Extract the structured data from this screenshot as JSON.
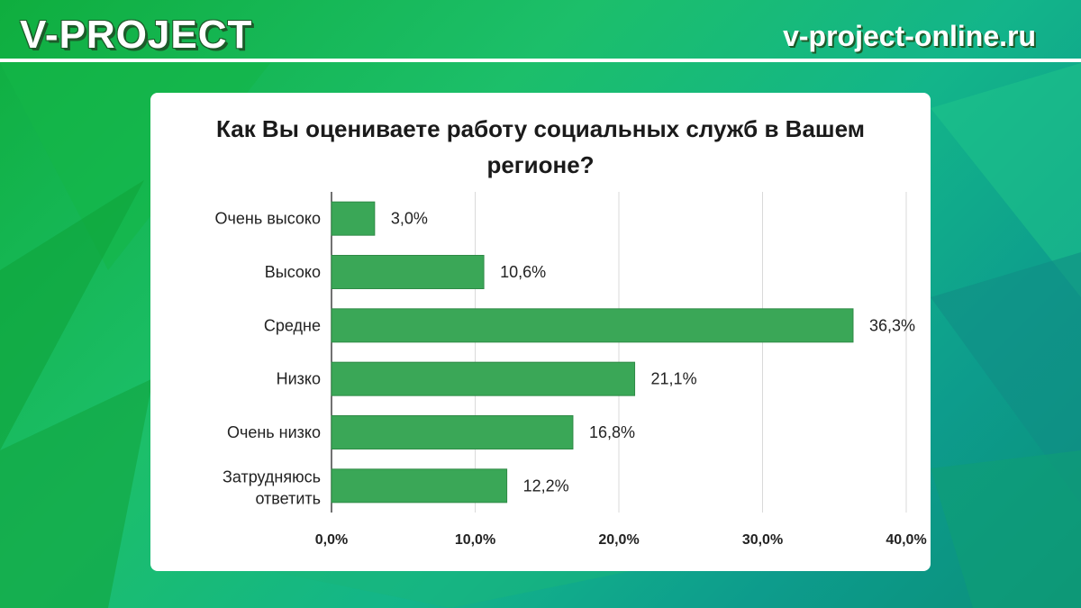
{
  "header": {
    "brand": "V-PROJECT",
    "site": "v-project-online.ru"
  },
  "colors": {
    "bar": "#3aa757",
    "bar_stroke": "#2f8a46",
    "grid": "#d9d9d9",
    "axis": "#444444"
  },
  "chart_data": {
    "type": "bar",
    "orientation": "horizontal",
    "title": "Как Вы оцениваете работу социальных служб в Вашем регионе?",
    "categories": [
      "Очень высоко",
      "Высоко",
      "Средне",
      "Низко",
      "Очень низко",
      "Затрудняюсь ответить"
    ],
    "values": [
      3.0,
      10.6,
      36.3,
      21.1,
      16.8,
      12.2
    ],
    "value_labels": [
      "3,0%",
      "10,6%",
      "36,3%",
      "21,1%",
      "16,8%",
      "12,2%"
    ],
    "xlim": [
      0,
      40
    ],
    "xticks": [
      0,
      10,
      20,
      30,
      40
    ],
    "xtick_labels": [
      "0,0%",
      "10,0%",
      "20,0%",
      "30,0%",
      "40,0%"
    ],
    "grid": true,
    "xlabel": "",
    "ylabel": ""
  }
}
